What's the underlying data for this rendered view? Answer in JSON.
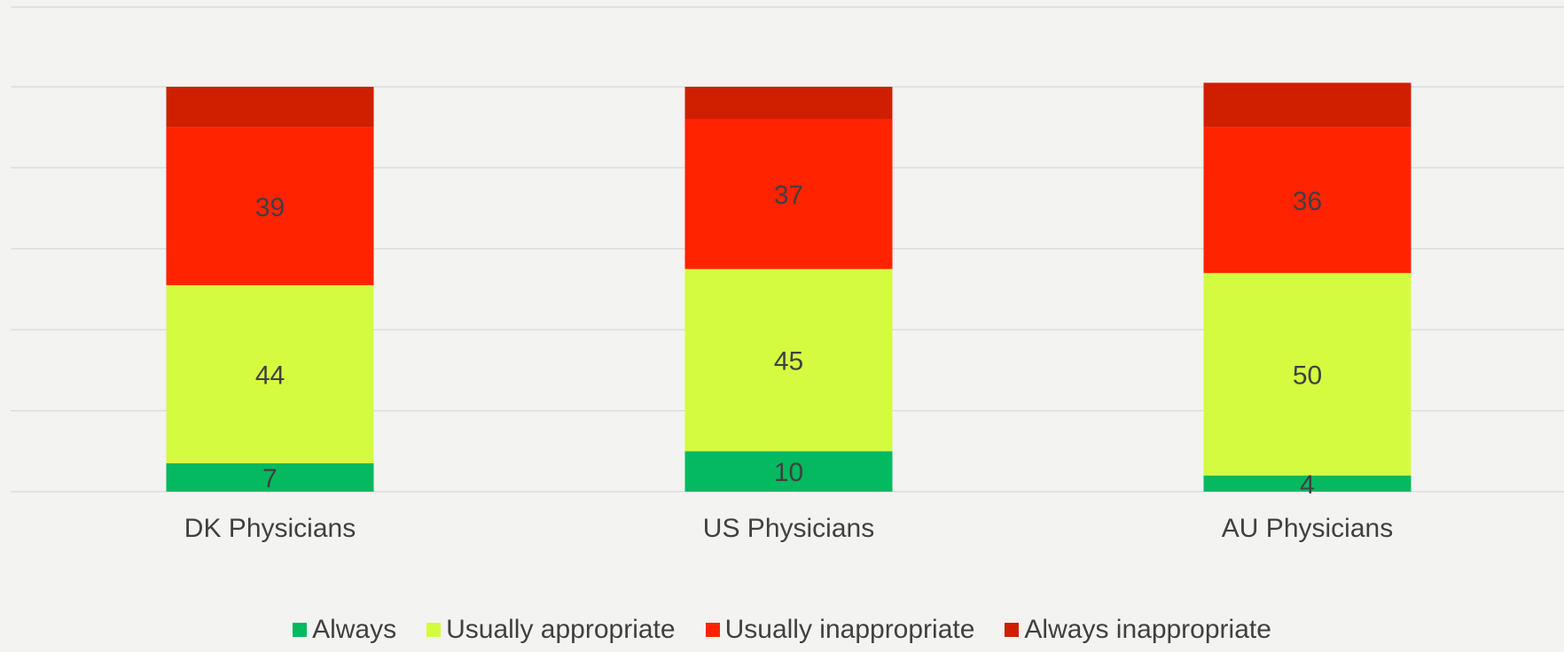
{
  "chart_data": {
    "type": "bar",
    "stacked": true,
    "categories": [
      "DK Physicians",
      "US Physicians",
      "AU Physicians"
    ],
    "series": [
      {
        "name": "Always",
        "color": "#05b960",
        "values": [
          7,
          10,
          4
        ]
      },
      {
        "name": "Usually appropriate",
        "color": "#d5fb40",
        "values": [
          44,
          45,
          50
        ]
      },
      {
        "name": "Usually inappropriate",
        "color": "#ff2300",
        "values": [
          39,
          37,
          36
        ]
      },
      {
        "name": "Always inappropriate",
        "color": "#d01f00",
        "values": [
          10,
          8,
          11
        ]
      }
    ],
    "labeled_series": [
      "Always",
      "Usually appropriate",
      "Usually inappropriate"
    ],
    "ylim": [
      0,
      100
    ],
    "grid": true,
    "legend_position": "bottom"
  }
}
